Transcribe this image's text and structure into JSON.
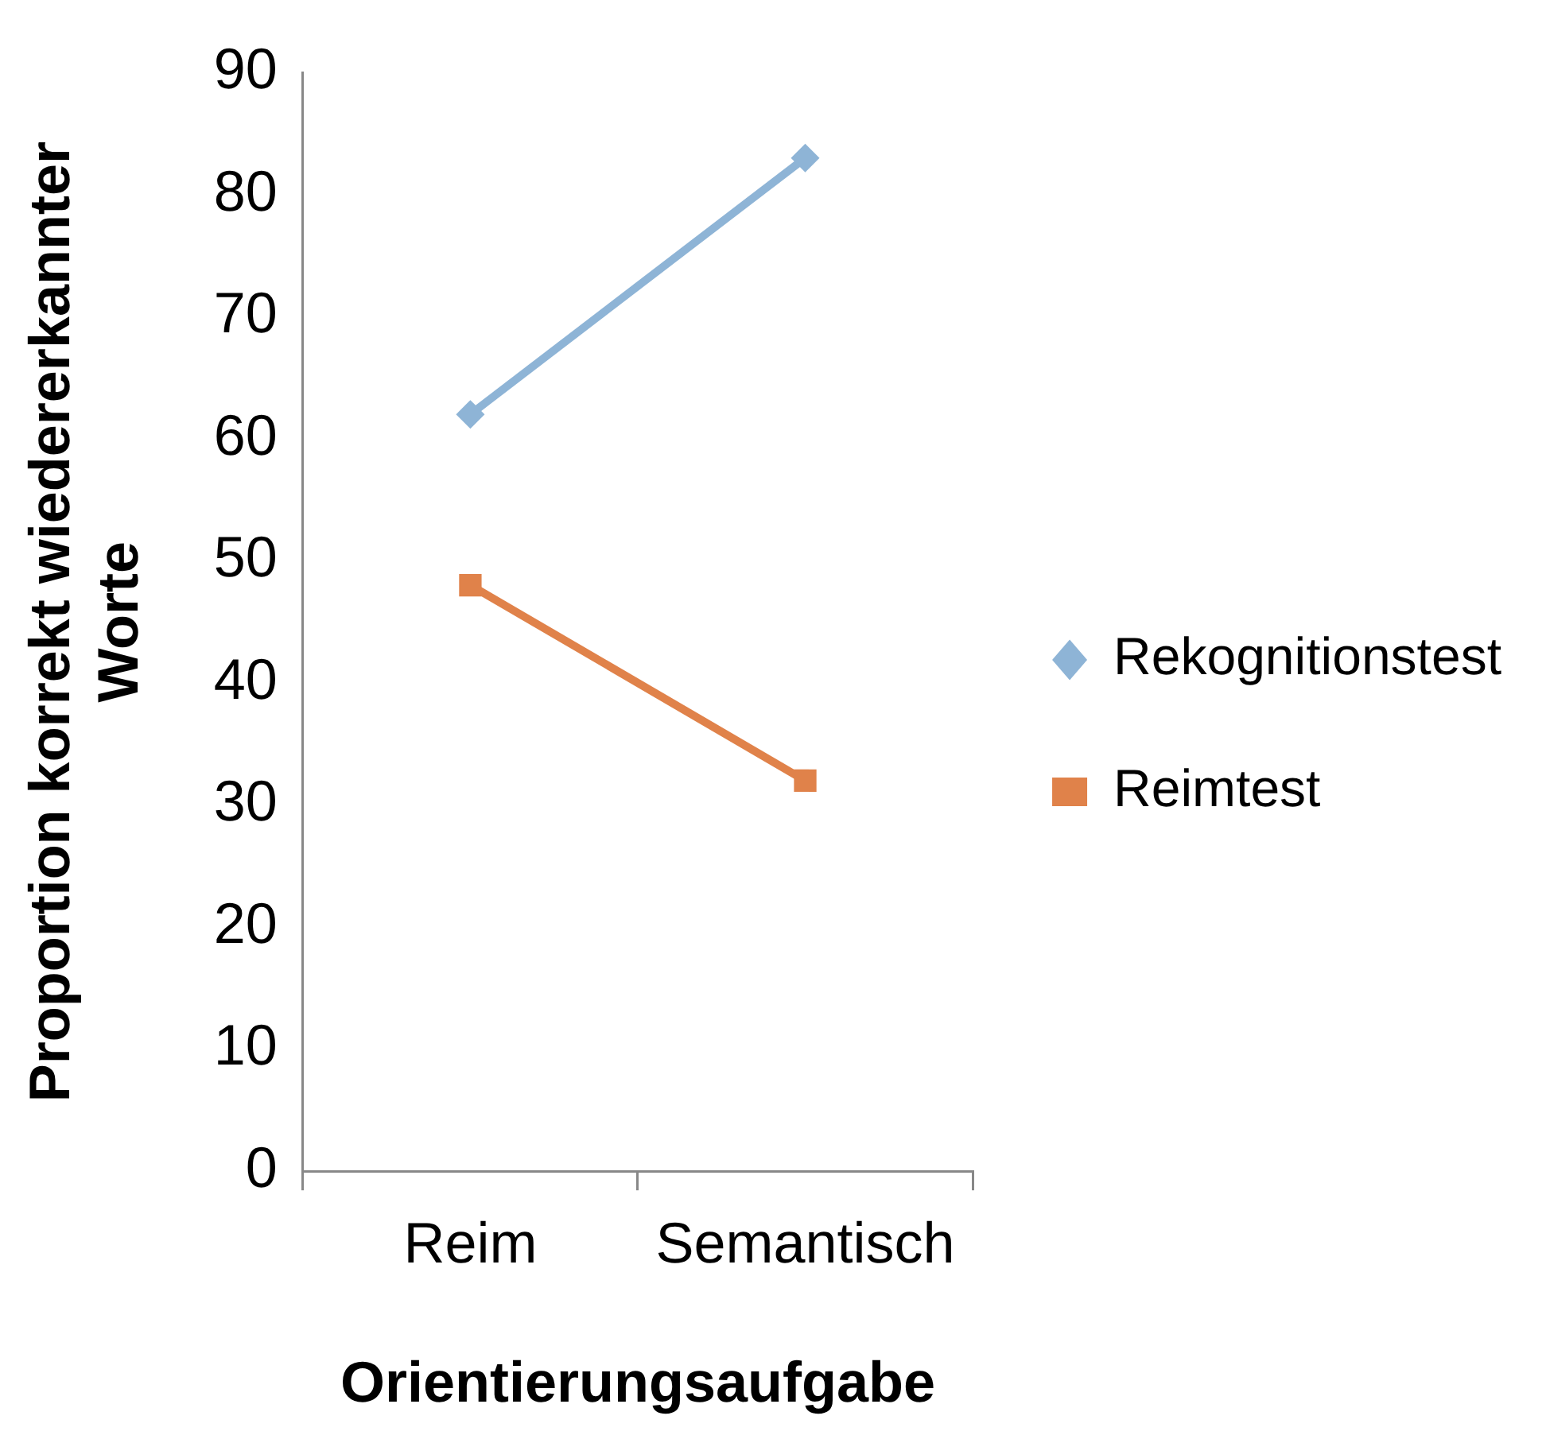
{
  "chart_data": {
    "type": "line",
    "xlabel": "Orientierungsaufgabe",
    "ylabel": "Proportion korrekt wiedererkannter Worte",
    "categories": [
      "Reim",
      "Semantisch"
    ],
    "series": [
      {
        "name": "Rekognitionstest",
        "color": "#8eb4d6",
        "values": [
          62,
          83
        ],
        "marker": "diamond"
      },
      {
        "name": "Reimtest",
        "color": "#e0824a",
        "values": [
          48,
          32
        ],
        "marker": "square"
      }
    ],
    "ylim": [
      0,
      90
    ],
    "yticks": [
      0,
      10,
      20,
      30,
      40,
      50,
      60,
      70,
      80,
      90
    ],
    "grid": false,
    "legend": "right",
    "line_style": "solid"
  }
}
